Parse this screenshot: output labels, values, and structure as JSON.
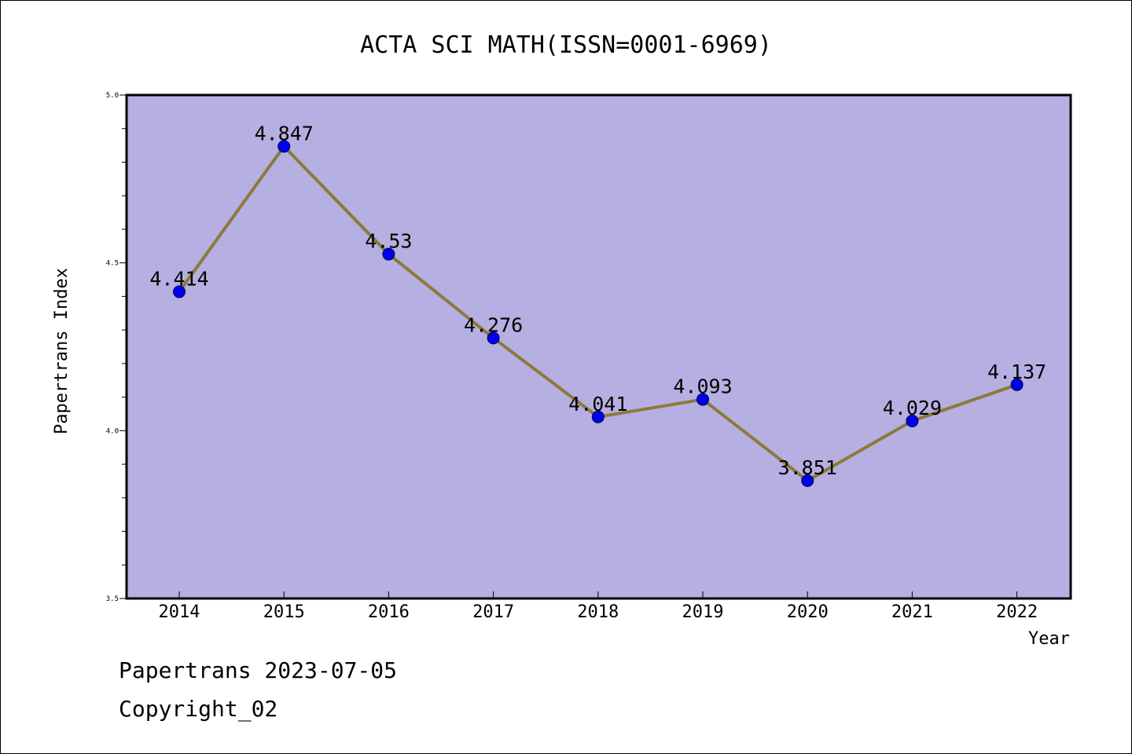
{
  "chart_data": {
    "type": "line",
    "title": "ACTA SCI MATH(ISSN=0001-6969)",
    "xlabel": "Year",
    "ylabel": "Papertrans Index",
    "categories": [
      "2014",
      "2015",
      "2016",
      "2017",
      "2018",
      "2019",
      "2020",
      "2021",
      "2022"
    ],
    "series": [
      {
        "values": [
          4.414,
          4.847,
          4.526,
          4.276,
          4.041,
          4.093,
          3.851,
          4.029,
          4.137
        ],
        "labels": [
          "4.414",
          "4.847",
          "4.53",
          "4.276",
          "4.041",
          "4.093",
          "3.851",
          "4.029",
          "4.137"
        ]
      }
    ],
    "ylim": [
      3.5,
      5.0
    ],
    "yticks": [
      "3.5",
      "4.0",
      "4.5",
      "5.0"
    ],
    "grid": false,
    "colors": {
      "plot_background": "#b5afe2",
      "line": "#8b7a3a",
      "marker": "#0000ee"
    }
  },
  "footer": {
    "date_line": "Papertrans 2023-07-05",
    "copyright_line": "Copyright_02"
  }
}
